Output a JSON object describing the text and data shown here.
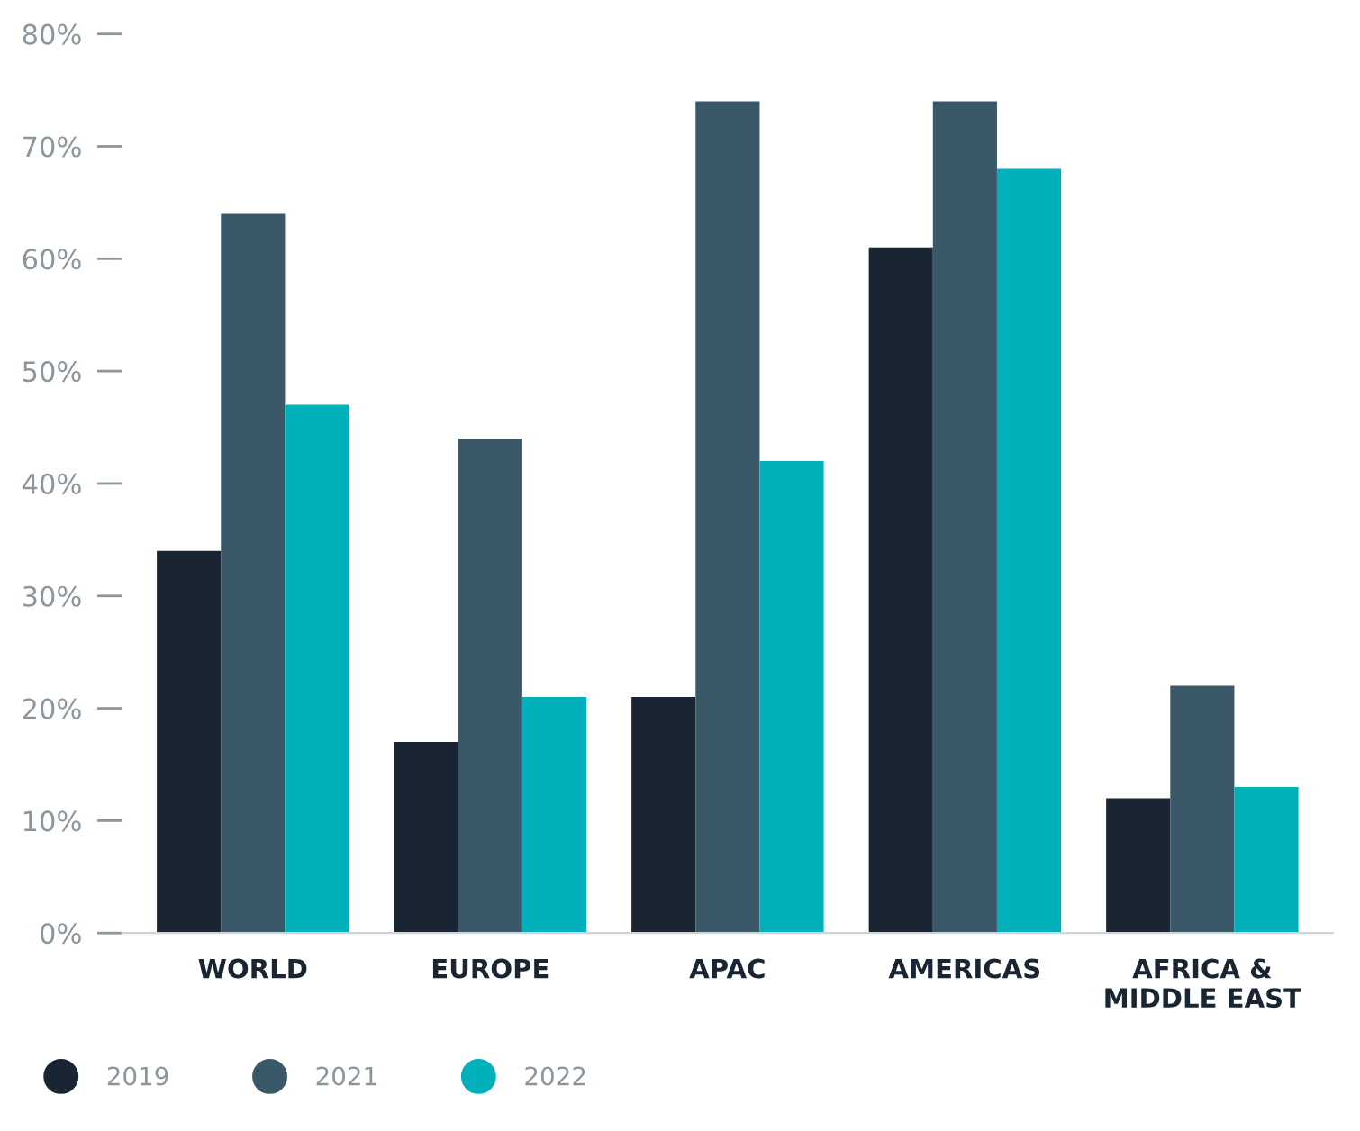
{
  "chart_data": {
    "type": "bar",
    "categories": [
      "WORLD",
      "EUROPE",
      "APAC",
      "AMERICAS",
      "AFRICA &\nMIDDLE EAST"
    ],
    "series": [
      {
        "name": "2019",
        "color": "#1a2533",
        "values": [
          34,
          17,
          21,
          61,
          12
        ]
      },
      {
        "name": "2021",
        "color": "#3a5868",
        "values": [
          64,
          44,
          74,
          74,
          22
        ]
      },
      {
        "name": "2022",
        "color": "#00b0bb",
        "values": [
          47,
          21,
          42,
          68,
          13
        ]
      }
    ],
    "ylim": [
      0,
      80
    ],
    "yticks": [
      {
        "value": 0,
        "label": "0%"
      },
      {
        "value": 10,
        "label": "10%"
      },
      {
        "value": 20,
        "label": "20%"
      },
      {
        "value": 30,
        "label": "30%"
      },
      {
        "value": 40,
        "label": "40%"
      },
      {
        "value": 50,
        "label": "50%"
      },
      {
        "value": 60,
        "label": "60%"
      },
      {
        "value": 70,
        "label": "70%"
      },
      {
        "value": 80,
        "label": "80%"
      }
    ],
    "grid": false,
    "legend": "bottom"
  }
}
